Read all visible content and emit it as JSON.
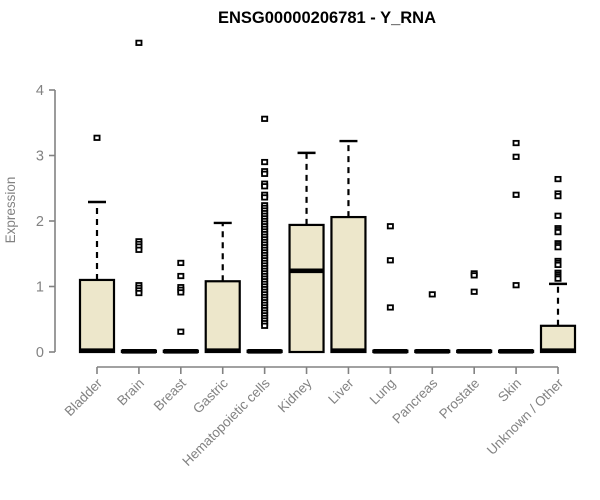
{
  "page": {
    "background": "#ffffff"
  },
  "chart_data": {
    "type": "boxplot",
    "title": "ENSG00000206781 - Y_RNA",
    "ylabel": "Expression",
    "xlabel": "",
    "ylim": [
      0,
      4
    ],
    "yticks": [
      0,
      1,
      2,
      3,
      4
    ],
    "grid": false,
    "legend": false,
    "categories": [
      "Bladder",
      "Brain",
      "Breast",
      "Gastric",
      "Hematopoietic cells",
      "Kidney",
      "Liver",
      "Lung",
      "Pancreas",
      "Prostate",
      "Skin",
      "Unknown / Other"
    ],
    "boxes": [
      {
        "category": "Bladder",
        "whisker_low": 0,
        "q1": 0,
        "median": 0.02,
        "q3": 1.1,
        "whisker_high": 2.29,
        "outliers": [
          3.27
        ]
      },
      {
        "category": "Brain",
        "whisker_low": 0,
        "q1": 0,
        "median": 0.01,
        "q3": 0.02,
        "whisker_high": 0.02,
        "outliers": [
          4.72,
          1.69,
          1.65,
          1.61,
          1.56,
          1.02,
          0.98,
          0.94,
          0.9
        ]
      },
      {
        "category": "Breast",
        "whisker_low": 0,
        "q1": 0,
        "median": 0.01,
        "q3": 0.02,
        "whisker_high": 0.02,
        "outliers": [
          1.36,
          1.16,
          0.99,
          0.95,
          0.91,
          0.31
        ]
      },
      {
        "category": "Gastric",
        "whisker_low": 0,
        "q1": 0,
        "median": 0.02,
        "q3": 1.08,
        "whisker_high": 1.97,
        "outliers": []
      },
      {
        "category": "Hematopoietic cells",
        "whisker_low": 0,
        "q1": 0,
        "median": 0.01,
        "q3": 0.02,
        "whisker_high": 0.02,
        "outliers": [
          3.56,
          2.9,
          2.76,
          2.72,
          2.57,
          2.53,
          2.4,
          2.36,
          2.24,
          2.2,
          2.16,
          2.12,
          2.08,
          2.04,
          2.0,
          1.96,
          1.92,
          1.88,
          1.84,
          1.8,
          1.76,
          1.72,
          1.68,
          1.64,
          1.6,
          1.56,
          1.52,
          1.48,
          1.44,
          1.4,
          1.36,
          1.32,
          1.28,
          1.24,
          1.2,
          1.16,
          1.12,
          1.08,
          1.04,
          1.0,
          0.96,
          0.92,
          0.88,
          0.84,
          0.8,
          0.76,
          0.72,
          0.68,
          0.64,
          0.6,
          0.56,
          0.52,
          0.48,
          0.44,
          0.4
        ]
      },
      {
        "category": "Kidney",
        "whisker_low": 0,
        "q1": 0,
        "median": 1.24,
        "q3": 1.94,
        "whisker_high": 3.04,
        "outliers": []
      },
      {
        "category": "Liver",
        "whisker_low": 0,
        "q1": 0,
        "median": 0.02,
        "q3": 2.06,
        "whisker_high": 3.22,
        "outliers": []
      },
      {
        "category": "Lung",
        "whisker_low": 0,
        "q1": 0,
        "median": 0.01,
        "q3": 0.02,
        "whisker_high": 0.02,
        "outliers": [
          1.92,
          1.4,
          0.68
        ]
      },
      {
        "category": "Pancreas",
        "whisker_low": 0,
        "q1": 0,
        "median": 0.01,
        "q3": 0.02,
        "whisker_high": 0.02,
        "outliers": [
          0.88
        ]
      },
      {
        "category": "Prostate",
        "whisker_low": 0,
        "q1": 0,
        "median": 0.01,
        "q3": 0.02,
        "whisker_high": 0.02,
        "outliers": [
          1.2,
          1.17,
          0.92
        ]
      },
      {
        "category": "Skin",
        "whisker_low": 0,
        "q1": 0,
        "median": 0.01,
        "q3": 0.02,
        "whisker_high": 0.02,
        "outliers": [
          3.19,
          2.98,
          2.4,
          1.02
        ]
      },
      {
        "category": "Unknown / Other",
        "whisker_low": 0,
        "q1": 0,
        "median": 0.02,
        "q3": 0.4,
        "whisker_high": 1.04,
        "outliers": [
          2.64,
          2.42,
          2.38,
          2.08,
          1.89,
          1.86,
          1.83,
          1.66,
          1.63,
          1.6,
          1.39,
          1.36,
          1.33,
          1.21,
          1.18,
          1.15,
          1.12
        ]
      }
    ],
    "style": {
      "box_fill": "#ede7cb",
      "box_stroke": "#000000",
      "median_color": "#000000",
      "whisker_color": "#000000",
      "outlier_color": "#000000",
      "outlier_shape": "open-square",
      "axis_color": "#828282",
      "tick_text_color": "#828282",
      "title_color": "#000000",
      "whisker_style": "dashed",
      "legend_position": "none"
    }
  }
}
